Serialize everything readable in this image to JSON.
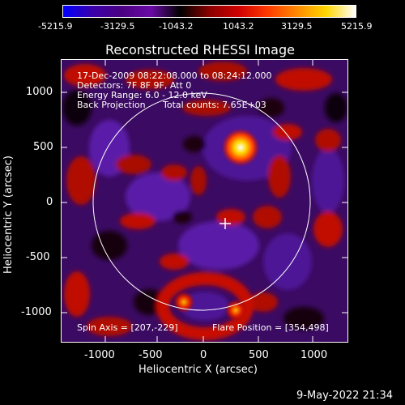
{
  "colorbar": {
    "ticks": [
      "-5215.9",
      "-3129.5",
      "-1043.2",
      "1043.2",
      "3129.5",
      "5215.9"
    ],
    "stops": [
      "#0000ff",
      "#3a00a8",
      "#4b0082",
      "#6a0aa6",
      "#000000",
      "#8a0000",
      "#d00000",
      "#ff3a00",
      "#ff8a00",
      "#ffd700",
      "#ffffff"
    ]
  },
  "title": "Reconstructed RHESSI Image",
  "info": {
    "line1": "17-Dec-2009 08:22:08.000 to 08:24:12.000",
    "line2": "Detectors: 7F 8F 9F, Att 0",
    "line3": "Energy Range: 6.0 - 12.0 keV",
    "line4a": "Back Projection",
    "line4b": "Total counts: 7.65E+03",
    "spin_axis": "Spin Axis = [207,-229]",
    "flare_position": "Flare Position = [354,498]"
  },
  "y_axis": {
    "label": "Heliocentric Y (arcsec)",
    "ticks": [
      "1000",
      "500",
      "0",
      "-500",
      "-1000"
    ]
  },
  "x_axis": {
    "label": "Heliocentric X (arcsec)",
    "ticks": [
      "-1000",
      "-500",
      "0",
      "500",
      "1000"
    ]
  },
  "timestamp": "9-May-2022 21:34",
  "image_colors": {
    "dark": "#000000",
    "purple": "#4b0082",
    "red": "#c00000",
    "hot": "#ffd700",
    "limb": "#ffffff"
  }
}
